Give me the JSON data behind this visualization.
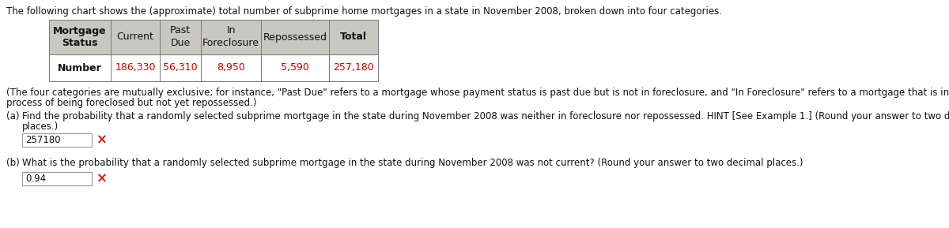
{
  "intro_text": "The following chart shows the (approximate) total number of subprime home mortgages in a state in November 2008, broken down into four categories.",
  "table_headers": [
    "Mortgage\nStatus",
    "Current",
    "Past\nDue",
    "In\nForeclosure",
    "Repossessed",
    "Total"
  ],
  "table_values": [
    "Number",
    "186,330",
    "56,310",
    "8,950",
    "5,590",
    "257,180"
  ],
  "number_colors": [
    "#cc0000",
    "#cc0000",
    "#cc0000",
    "#cc0000",
    "#cc0000"
  ],
  "header_bg": "#c8c8c0",
  "data_bg": "#ffffff",
  "note_text": "(The four categories are mutually exclusive; for instance, \"Past Due\" refers to a mortgage whose payment status is past due but is not in foreclosure, and \"In Foreclosure\" refers to a mortgage that is in the",
  "note_text2": "process of being foreclosed but not yet repossessed.)",
  "part_a_label": "(a)",
  "part_a_text": "Find the probability that a randomly selected subprime mortgage in the state during November 2008 was neither in foreclosure nor repossessed. HINT [See Example 1.] (Round your answer to two decimal",
  "part_a_text2": "places.)",
  "part_a_answer": "257180",
  "part_b_label": "(b)",
  "part_b_text": "What is the probability that a randomly selected subprime mortgage in the state during November 2008 was not current? (Round your answer to two decimal places.)",
  "part_b_answer": "0.94",
  "wrong_mark_color": "#cc2200",
  "text_color": "#111111",
  "font_size": 8.5,
  "table_font_size": 9.0,
  "box_border_color": "#999999",
  "box_fill_color": "#ffffff",
  "fig_width": 12.0,
  "fig_height": 2.89,
  "dpi": 100
}
